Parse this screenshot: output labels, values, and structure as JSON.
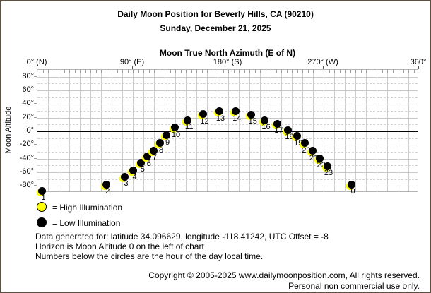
{
  "header": {
    "title": "Daily Moon Position for Beverly Hills, CA (90210)",
    "date": "Sunday, December 21, 2025"
  },
  "chart_data": {
    "type": "scatter",
    "title": "Moon True North Azimuth (E of N)",
    "xlabel": "Moon True North Azimuth (E of N)",
    "ylabel": "Moon Altitude",
    "xlim": [
      0,
      360
    ],
    "ylim": [
      -90,
      90
    ],
    "grid": "on",
    "x_ticks": [
      {
        "az": 0,
        "label": "0° (N)"
      },
      {
        "az": 90,
        "label": "90° (E)"
      },
      {
        "az": 180,
        "label": "180° (S)"
      },
      {
        "az": 270,
        "label": "270° (W)"
      },
      {
        "az": 360,
        "label": "360°"
      }
    ],
    "y_ticks": [
      {
        "alt": 80,
        "label": "80°"
      },
      {
        "alt": 60,
        "label": "60°"
      },
      {
        "alt": 40,
        "label": "40°"
      },
      {
        "alt": 20,
        "label": "20°"
      },
      {
        "alt": 0,
        "label": "0°"
      },
      {
        "alt": -20,
        "label": "-20°"
      },
      {
        "alt": -40,
        "label": "-40°"
      },
      {
        "alt": -60,
        "label": "-60°"
      },
      {
        "alt": -80,
        "label": "-80°"
      }
    ],
    "series_note": "hour of day local time, moon azimuth (deg E of N), moon altitude (deg)",
    "points": [
      {
        "hour": "0",
        "az": 297,
        "alt": -79,
        "illumination": "low"
      },
      {
        "hour": "1",
        "az": 5,
        "alt": -88,
        "illumination": "low"
      },
      {
        "hour": "2",
        "az": 65.5,
        "alt": -79,
        "illumination": "low"
      },
      {
        "hour": "3",
        "az": 83,
        "alt": -67.5,
        "illumination": "low"
      },
      {
        "hour": "4",
        "az": 91,
        "alt": -58,
        "illumination": "low"
      },
      {
        "hour": "5",
        "az": 98.5,
        "alt": -47,
        "illumination": "low"
      },
      {
        "hour": "6",
        "az": 104.5,
        "alt": -38,
        "illumination": "low"
      },
      {
        "hour": "7",
        "az": 110,
        "alt": -29,
        "illumination": "low"
      },
      {
        "hour": "8",
        "az": 116,
        "alt": -18.5,
        "illumination": "low"
      },
      {
        "hour": "9",
        "az": 122,
        "alt": -7,
        "illumination": "low"
      },
      {
        "hour": "10",
        "az": 130,
        "alt": 4.5,
        "illumination": "low"
      },
      {
        "hour": "11",
        "az": 142.5,
        "alt": 15.5,
        "illumination": "low"
      },
      {
        "hour": "12",
        "az": 157,
        "alt": 24,
        "illumination": "low"
      },
      {
        "hour": "13",
        "az": 172,
        "alt": 28,
        "illumination": "low"
      },
      {
        "hour": "14",
        "az": 187.5,
        "alt": 28,
        "illumination": "low"
      },
      {
        "hour": "15",
        "az": 202.5,
        "alt": 23.5,
        "illumination": "low"
      },
      {
        "hour": "16",
        "az": 215,
        "alt": 15.5,
        "illumination": "low"
      },
      {
        "hour": "17",
        "az": 227,
        "alt": 10,
        "illumination": "low"
      },
      {
        "hour": "18",
        "az": 237,
        "alt": 1,
        "illumination": "low"
      },
      {
        "hour": "19",
        "az": 245.5,
        "alt": -8,
        "illumination": "low"
      },
      {
        "hour": "20",
        "az": 253,
        "alt": -18.5,
        "illumination": "low"
      },
      {
        "hour": "21",
        "az": 260,
        "alt": -29.5,
        "illumination": "low"
      },
      {
        "hour": "22",
        "az": 267,
        "alt": -40.5,
        "illumination": "low"
      },
      {
        "hour": "23",
        "az": 274,
        "alt": -52,
        "illumination": "low"
      }
    ]
  },
  "legend": {
    "high": {
      "label": "= High Illumination",
      "color": "#ffff00"
    },
    "low": {
      "label": "= Low Illumination",
      "color": "#000000"
    }
  },
  "footer": {
    "line1": "Data generated for: latitude 34.096629, longitude -118.41242, UTC Offset = -8",
    "line2": "Horizon is Moon Altitude 0 on the left of chart",
    "line3": "Numbers below the circles are the hour of the day local time."
  },
  "copyright": {
    "line1": "Copyright © 2005-2025 www.dailymoonposition.com, All rights reserved.",
    "line2": "Personal non commercial use only."
  },
  "colors": {
    "frame": "#5a5044",
    "grid": "#c8c8c8",
    "zero_line": "#000000",
    "point_fill": "#000000",
    "point_fringe": "#ffff00",
    "background": "#ffffff"
  }
}
